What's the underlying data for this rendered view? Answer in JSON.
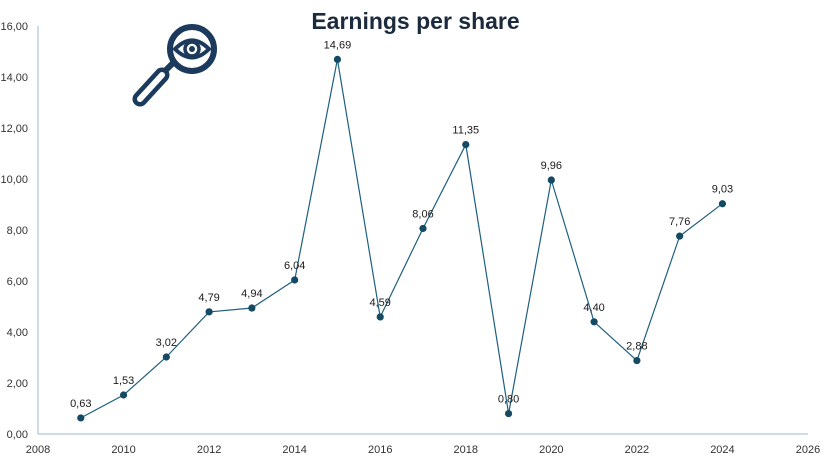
{
  "colors": {
    "line": "#1f5f7f",
    "marker": "#154a64",
    "axis": "#9fb9cc",
    "icon": "#1b3a5c"
  },
  "icon": "magnifier-eye-icon",
  "chart_data": {
    "type": "scatter",
    "title": "Earnings per share",
    "xlabel": "",
    "ylabel": "",
    "xlim": [
      2008,
      2026
    ],
    "ylim": [
      0,
      16
    ],
    "grid": false,
    "x_ticks": [
      "2008",
      "2010",
      "2012",
      "2014",
      "2016",
      "2018",
      "2020",
      "2022",
      "2024",
      "2026"
    ],
    "y_ticks": [
      "0,00",
      "2,00",
      "4,00",
      "6,00",
      "8,00",
      "10,00",
      "12,00",
      "14,00",
      "16,00"
    ],
    "series": [
      {
        "x": [
          2009,
          2010,
          2011,
          2012,
          2013,
          2014,
          2015,
          2016,
          2017,
          2018,
          2019,
          2020,
          2021,
          2022,
          2023,
          2024
        ],
        "values": [
          0.63,
          1.53,
          3.02,
          4.79,
          4.94,
          6.04,
          14.69,
          4.59,
          8.06,
          11.35,
          0.8,
          9.96,
          4.4,
          2.88,
          7.76,
          9.03
        ],
        "labels": [
          "0,63",
          "1,53",
          "3,02",
          "4,79",
          "4,94",
          "6,04",
          "14,69",
          "4,59",
          "8,06",
          "11,35",
          "0,80",
          "9,96",
          "4,40",
          "2,88",
          "7,76",
          "9,03"
        ]
      }
    ]
  }
}
